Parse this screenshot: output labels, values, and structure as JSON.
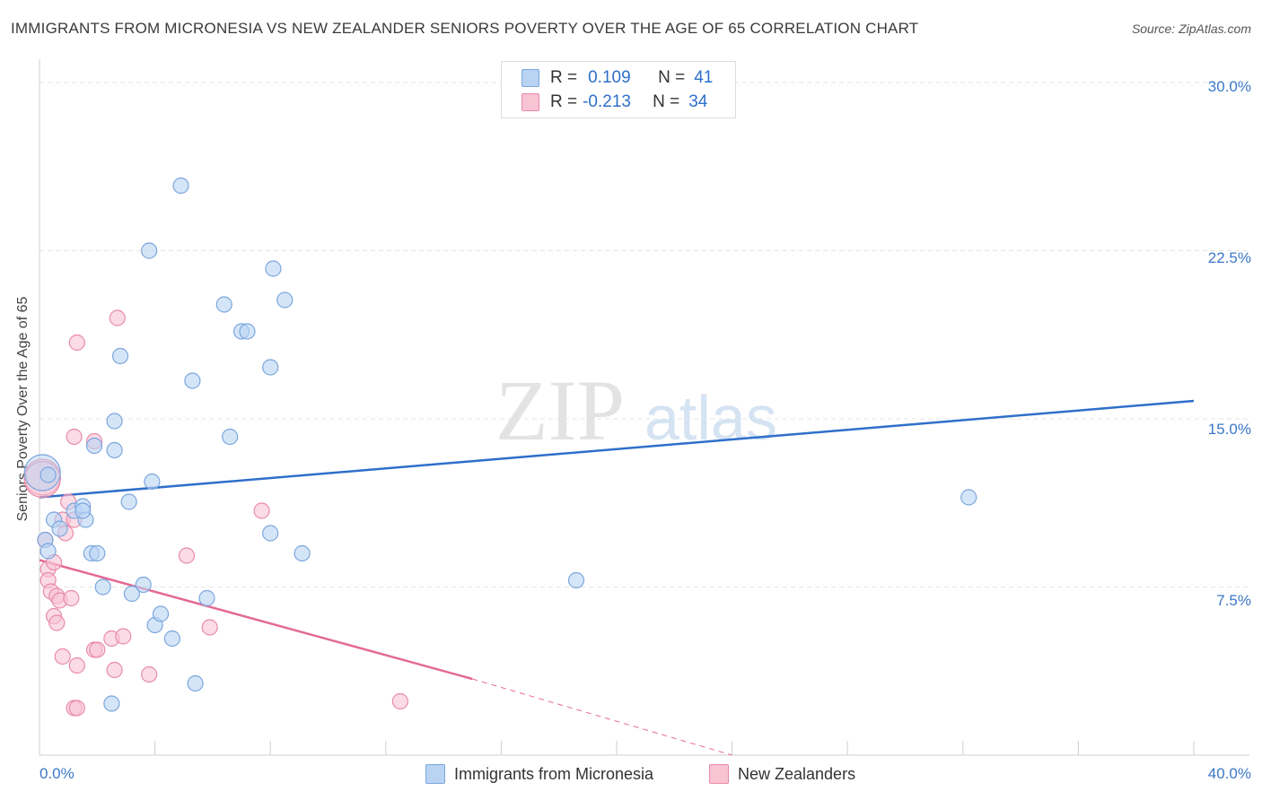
{
  "header": {
    "title": "IMMIGRANTS FROM MICRONESIA VS NEW ZEALANDER SENIORS POVERTY OVER THE AGE OF 65 CORRELATION CHART",
    "source": "Source: ZipAtlas.com"
  },
  "watermark": {
    "zip": "ZIP",
    "atlas": "atlas"
  },
  "legend": {
    "r_label": "R =",
    "n_label": "N =",
    "series1": {
      "r": "0.109",
      "n": "41"
    },
    "series2": {
      "r": "-0.213",
      "n": "34"
    }
  },
  "bottom_legend": {
    "series1": "Immigrants from Micronesia",
    "series2": "New Zealanders"
  },
  "colors": {
    "series1_fill": "#b9d3f3",
    "series1_stroke": "#7aa6dd",
    "series1_line": "#2f6fca",
    "series2_fill": "#f8c3d3",
    "series2_stroke": "#e88aaa",
    "series2_line": "#e46a93",
    "axis_text": "#3b78c9"
  },
  "chart_data": {
    "type": "scatter",
    "title": "IMMIGRANTS FROM MICRONESIA VS NEW ZEALANDER SENIORS POVERTY OVER THE AGE OF 65 CORRELATION CHART",
    "xlabel": "",
    "ylabel": "Seniors Poverty Over the Age of 65",
    "xlim": [
      0,
      40
    ],
    "ylim": [
      0,
      30
    ],
    "x_tick_labels": [
      "0.0%",
      "40.0%"
    ],
    "y_tick_labels": [
      "7.5%",
      "15.0%",
      "22.5%",
      "30.0%"
    ],
    "y_ticks": [
      7.5,
      15.0,
      22.5,
      30.0
    ],
    "grid": true,
    "legend_placement": "top-center",
    "series": [
      {
        "name": "Immigrants from Micronesia",
        "points": [
          [
            0.1,
            12.6
          ],
          [
            0.2,
            9.6
          ],
          [
            0.3,
            9.1
          ],
          [
            0.5,
            10.5
          ],
          [
            0.7,
            10.1
          ],
          [
            1.2,
            10.9
          ],
          [
            1.5,
            11.1
          ],
          [
            1.6,
            10.5
          ],
          [
            1.8,
            9.0
          ],
          [
            2.0,
            9.0
          ],
          [
            1.9,
            13.8
          ],
          [
            2.2,
            7.5
          ],
          [
            2.6,
            14.9
          ],
          [
            2.6,
            13.6
          ],
          [
            2.8,
            17.8
          ],
          [
            3.1,
            11.3
          ],
          [
            3.2,
            7.2
          ],
          [
            3.6,
            7.6
          ],
          [
            3.8,
            22.5
          ],
          [
            3.9,
            12.2
          ],
          [
            4.0,
            5.8
          ],
          [
            4.2,
            6.3
          ],
          [
            4.6,
            5.2
          ],
          [
            4.9,
            25.4
          ],
          [
            5.3,
            16.7
          ],
          [
            5.4,
            3.2
          ],
          [
            5.8,
            7.0
          ],
          [
            6.4,
            20.1
          ],
          [
            6.6,
            14.2
          ],
          [
            7.0,
            18.9
          ],
          [
            7.2,
            18.9
          ],
          [
            8.0,
            17.3
          ],
          [
            8.1,
            21.7
          ],
          [
            8.5,
            20.3
          ],
          [
            8.0,
            9.9
          ],
          [
            9.1,
            9.0
          ],
          [
            18.6,
            7.8
          ],
          [
            32.2,
            11.5
          ],
          [
            0.3,
            12.5
          ],
          [
            1.5,
            10.9
          ],
          [
            2.5,
            2.3
          ]
        ]
      },
      {
        "name": "New Zealanders",
        "points": [
          [
            0.1,
            12.4
          ],
          [
            0.2,
            9.6
          ],
          [
            0.3,
            8.3
          ],
          [
            0.3,
            7.8
          ],
          [
            0.4,
            7.3
          ],
          [
            0.5,
            6.2
          ],
          [
            0.5,
            8.6
          ],
          [
            0.6,
            7.1
          ],
          [
            0.6,
            5.9
          ],
          [
            0.7,
            6.9
          ],
          [
            0.8,
            10.5
          ],
          [
            0.8,
            4.4
          ],
          [
            0.9,
            9.9
          ],
          [
            1.0,
            11.3
          ],
          [
            1.1,
            7.0
          ],
          [
            1.2,
            10.5
          ],
          [
            1.3,
            18.4
          ],
          [
            1.3,
            4.0
          ],
          [
            1.2,
            14.2
          ],
          [
            1.2,
            2.1
          ],
          [
            1.3,
            2.1
          ],
          [
            1.9,
            4.7
          ],
          [
            1.9,
            14.0
          ],
          [
            2.0,
            4.7
          ],
          [
            2.5,
            5.2
          ],
          [
            2.6,
            3.8
          ],
          [
            2.7,
            19.5
          ],
          [
            2.9,
            5.3
          ],
          [
            3.8,
            3.6
          ],
          [
            5.1,
            8.9
          ],
          [
            5.9,
            5.7
          ],
          [
            7.7,
            10.9
          ],
          [
            12.5,
            2.4
          ],
          [
            0.1,
            12.3
          ]
        ]
      }
    ],
    "trendlines": [
      {
        "series": "Immigrants from Micronesia",
        "x": [
          0,
          40
        ],
        "y": [
          11.5,
          15.8
        ]
      },
      {
        "series": "New Zealanders",
        "x": [
          0,
          15.0
        ],
        "y": [
          8.7,
          3.4
        ],
        "dashed_extension_to": [
          24.0,
          0.0
        ]
      }
    ]
  }
}
